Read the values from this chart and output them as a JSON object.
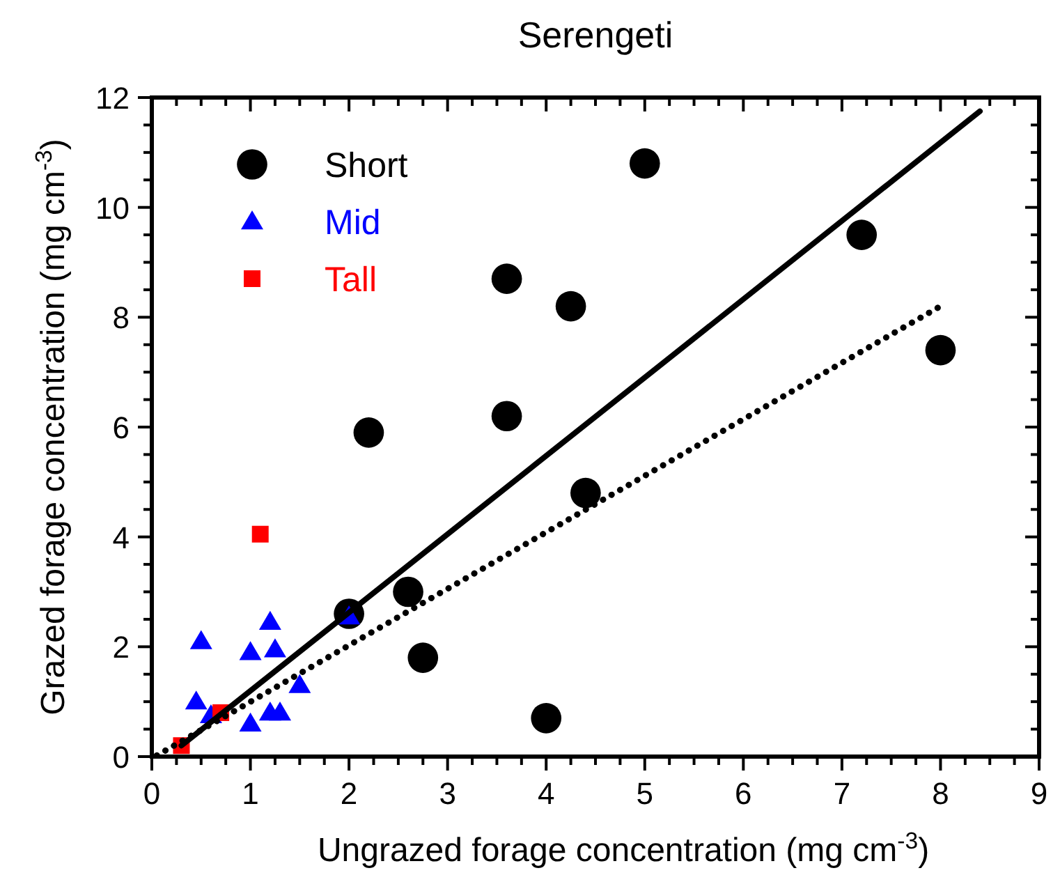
{
  "chart_data": {
    "type": "scatter",
    "title": "Serengeti",
    "xlabel": "Ungrazed forage concentration (mg cm$^{-3}$)",
    "ylabel": "Grazed forage concentration (mg cm$^{-3}$)",
    "xlim": [
      0,
      9
    ],
    "ylim": [
      0,
      12
    ],
    "xticks": [
      0,
      {
        "value": 0.25,
        "label": null
      },
      {
        "value": 0.5,
        "label": null
      },
      {
        "value": 0.75,
        "label": null
      },
      1,
      {
        "value": 1.25,
        "label": null
      },
      {
        "value": 1.5,
        "label": null
      },
      {
        "value": 1.75,
        "label": null
      },
      2,
      {
        "value": 2.25,
        "label": null
      },
      {
        "value": 2.5,
        "label": null
      },
      {
        "value": 2.75,
        "label": null
      },
      3,
      {
        "value": 3.25,
        "label": null
      },
      {
        "value": 3.5,
        "label": null
      },
      {
        "value": 3.75,
        "label": null
      },
      4,
      {
        "value": 4.25,
        "label": null
      },
      {
        "value": 4.5,
        "label": null
      },
      {
        "value": 4.75,
        "label": null
      },
      5,
      {
        "value": 5.25,
        "label": null
      },
      {
        "value": 5.5,
        "label": null
      },
      {
        "value": 5.75,
        "label": null
      },
      6,
      {
        "value": 6.25,
        "label": null
      },
      {
        "value": 6.5,
        "label": null
      },
      {
        "value": 6.75,
        "label": null
      },
      7,
      {
        "value": 7.25,
        "label": null
      },
      {
        "value": 7.5,
        "label": null
      },
      {
        "value": 7.75,
        "label": null
      },
      8,
      {
        "value": 8.25,
        "label": null
      },
      {
        "value": 8.5,
        "label": null
      },
      {
        "value": 8.75,
        "label": null
      },
      9
    ],
    "yticks": [
      0,
      {
        "value": 0.5,
        "label": null
      },
      {
        "value": 1,
        "label": null
      },
      {
        "value": 1.5,
        "label": null
      },
      2,
      {
        "value": 2.5,
        "label": null
      },
      {
        "value": 3,
        "label": null
      },
      {
        "value": 3.5,
        "label": null
      },
      4,
      {
        "value": 4.5,
        "label": null
      },
      {
        "value": 5,
        "label": null
      },
      {
        "value": 5.5,
        "label": null
      },
      6,
      {
        "value": 6.5,
        "label": null
      },
      {
        "value": 7,
        "label": null
      },
      {
        "value": 7.5,
        "label": null
      },
      8,
      {
        "value": 8.5,
        "label": null
      },
      {
        "value": 9,
        "label": null
      },
      {
        "value": 9.5,
        "label": null
      },
      10,
      {
        "value": 10.5,
        "label": null
      },
      {
        "value": 11,
        "label": null
      },
      {
        "value": 11.5,
        "label": null
      },
      12
    ],
    "legend": "top left",
    "grid": false,
    "series": [
      {
        "name": "Short",
        "color": "#000000",
        "marker": "circle",
        "x": [
          2.0,
          2.2,
          2.6,
          2.75,
          3.6,
          3.6,
          4.0,
          4.25,
          4.4,
          5.0,
          7.2,
          8.0
        ],
        "values": [
          2.6,
          5.9,
          3.0,
          1.8,
          8.7,
          6.2,
          0.7,
          8.2,
          4.8,
          10.8,
          9.5,
          7.4
        ]
      },
      {
        "name": "Mid",
        "color": "#0000ff",
        "marker": "triangle",
        "x": [
          0.45,
          0.5,
          0.6,
          1.0,
          1.0,
          1.2,
          1.2,
          1.25,
          1.3,
          1.5,
          2.0
        ],
        "values": [
          1.0,
          2.1,
          0.75,
          1.9,
          0.6,
          2.45,
          0.8,
          1.95,
          0.8,
          1.3,
          2.55
        ]
      },
      {
        "name": "Tall",
        "color": "#ff0000",
        "marker": "square",
        "x": [
          0.3,
          0.7,
          1.1
        ],
        "values": [
          0.2,
          0.8,
          4.05
        ]
      },
      {
        "type": "line",
        "color": "#000000",
        "line_style": "solid",
        "x": [
          0.3,
          8.4
        ],
        "values": [
          0.2,
          11.75
        ]
      },
      {
        "type": "line",
        "color": "#000000",
        "line_style": "dotted",
        "x": [
          0.05,
          8.0
        ],
        "values": [
          0.02,
          8.2
        ]
      }
    ]
  }
}
